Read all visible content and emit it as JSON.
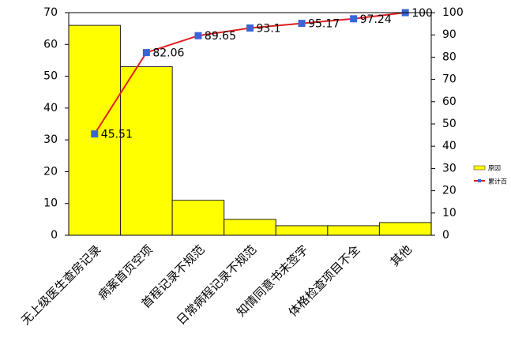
{
  "chart_data": {
    "type": "pareto",
    "categories": [
      "无上级医生查房记录",
      "病案首页空项",
      "首程记录不规范",
      "日常病程记录不规范",
      "知情同意书未签字",
      "体格检查项目不全",
      "其他"
    ],
    "series": [
      {
        "name": "原因",
        "color": "#ffff00",
        "values": [
          66,
          53,
          11,
          5,
          3,
          3,
          4
        ]
      },
      {
        "name": "累计百",
        "color": "#e02020",
        "marker_color": "#3c64d8",
        "axis": "y2",
        "values": [
          45.51,
          82.06,
          89.65,
          93.1,
          95.17,
          97.24,
          100
        ]
      }
    ],
    "ylim": [
      0,
      70
    ],
    "yticks": [
      0,
      10,
      20,
      30,
      40,
      50,
      60,
      70
    ],
    "y2lim": [
      0,
      100
    ],
    "y2ticks": [
      0,
      10,
      20,
      30,
      40,
      50,
      60,
      70,
      80,
      90,
      100
    ]
  }
}
